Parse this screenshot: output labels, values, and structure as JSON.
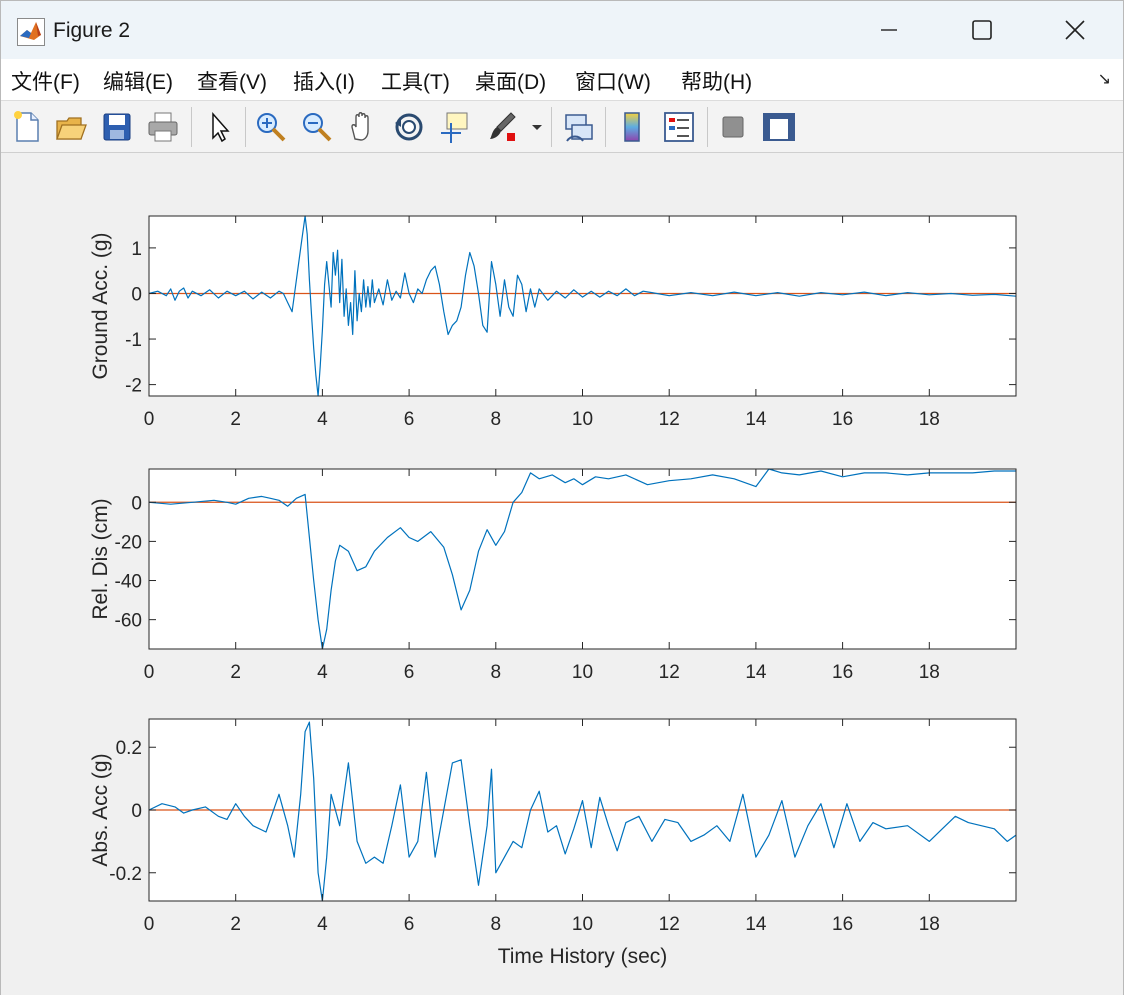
{
  "window": {
    "title": "Figure 2",
    "controls": [
      "minimize",
      "maximize",
      "close"
    ]
  },
  "menu": {
    "items": [
      "文件(F)",
      "编辑(E)",
      "查看(V)",
      "插入(I)",
      "工具(T)",
      "桌面(D)",
      "窗口(W)",
      "帮助(H)"
    ]
  },
  "toolbar": {
    "buttons": [
      "new-figure-icon",
      "open-file-icon",
      "save-icon",
      "print-icon",
      "select-arrow-icon",
      "zoom-in-icon",
      "zoom-out-icon",
      "pan-hand-icon",
      "rotate-3d-icon",
      "data-cursor-icon",
      "brush-icon",
      "brush-dropdown-icon",
      "link-plot-icon",
      "colorbar-icon",
      "legend-icon",
      "hide-plot-tools-icon",
      "show-plot-tools-icon"
    ]
  },
  "colors": {
    "series": "#0072bd",
    "reference": "#d95319",
    "axes": "#262626"
  },
  "chart_data": [
    {
      "type": "line",
      "ylabel": "Ground Acc. (g)",
      "xlabel": "",
      "xlim": [
        0,
        20
      ],
      "ylim": [
        -2.25,
        1.7
      ],
      "xticks": [
        0,
        2,
        4,
        6,
        8,
        10,
        12,
        14,
        16,
        18
      ],
      "yticks": [
        1,
        0,
        -1,
        -2
      ],
      "series": [
        {
          "x": [
            0,
            0.2,
            0.4,
            0.5,
            0.6,
            0.7,
            0.8,
            0.9,
            1.0,
            1.2,
            1.4,
            1.6,
            1.8,
            2.0,
            2.2,
            2.4,
            2.6,
            2.8,
            3.0,
            3.1,
            3.2,
            3.3,
            3.4,
            3.5,
            3.6,
            3.65,
            3.7,
            3.75,
            3.8,
            3.85,
            3.9,
            3.95,
            4.0,
            4.05,
            4.1,
            4.15,
            4.2,
            4.25,
            4.3,
            4.35,
            4.4,
            4.45,
            4.5,
            4.55,
            4.6,
            4.65,
            4.7,
            4.75,
            4.8,
            4.85,
            4.9,
            4.95,
            5.0,
            5.05,
            5.1,
            5.15,
            5.2,
            5.3,
            5.4,
            5.5,
            5.6,
            5.7,
            5.8,
            5.9,
            6.0,
            6.1,
            6.2,
            6.3,
            6.4,
            6.5,
            6.6,
            6.7,
            6.8,
            6.9,
            7.0,
            7.1,
            7.2,
            7.3,
            7.4,
            7.5,
            7.6,
            7.7,
            7.8,
            7.9,
            8.0,
            8.1,
            8.2,
            8.3,
            8.4,
            8.5,
            8.6,
            8.7,
            8.8,
            8.9,
            9.0,
            9.2,
            9.4,
            9.6,
            9.8,
            10.0,
            10.2,
            10.4,
            10.6,
            10.8,
            11.0,
            11.2,
            11.4,
            11.6,
            12.0,
            12.5,
            13.0,
            13.5,
            14.0,
            14.5,
            15.0,
            15.5,
            16.0,
            16.5,
            17.0,
            17.5,
            18.0,
            18.5,
            19.0,
            19.5,
            20.0
          ],
          "values": [
            0,
            0.05,
            -0.05,
            0.1,
            -0.15,
            0.05,
            0.12,
            -0.1,
            0.05,
            -0.05,
            0.08,
            -0.1,
            0.05,
            -0.05,
            0.05,
            -0.12,
            0.03,
            -0.1,
            0.05,
            0.0,
            -0.2,
            -0.4,
            0.3,
            1.0,
            1.7,
            1.3,
            0.3,
            -0.5,
            -1.2,
            -1.8,
            -2.25,
            -1.6,
            -0.8,
            0.2,
            0.7,
            0.2,
            -0.3,
            0.9,
            0.4,
            0.95,
            -0.2,
            0.75,
            -0.5,
            0.1,
            -0.7,
            -0.2,
            -0.9,
            0.5,
            -0.6,
            0.0,
            -0.4,
            0.3,
            -0.3,
            0.15,
            -0.3,
            0.3,
            -0.2,
            0.1,
            -0.25,
            0.3,
            -0.15,
            0.05,
            -0.1,
            0.45,
            0.0,
            -0.2,
            0.1,
            0.0,
            0.3,
            0.5,
            0.6,
            0.2,
            -0.4,
            -0.9,
            -0.7,
            -0.6,
            -0.3,
            0.4,
            0.9,
            0.6,
            0.0,
            -0.7,
            -0.85,
            0.7,
            0.2,
            -0.5,
            0.3,
            -0.3,
            -0.5,
            0.4,
            0.2,
            -0.4,
            0.1,
            -0.3,
            0.1,
            -0.15,
            0.05,
            -0.1,
            0.08,
            -0.08,
            0.05,
            -0.08,
            0.05,
            -0.05,
            0.1,
            -0.05,
            0.05,
            0.02,
            -0.05,
            0.02,
            -0.05,
            0.03,
            -0.05,
            0.02,
            -0.06,
            0.02,
            -0.03,
            0.03,
            -0.05,
            0.02,
            -0.03,
            0.0,
            -0.04,
            -0.02,
            -0.06
          ]
        }
      ]
    },
    {
      "type": "line",
      "ylabel": "Rel. Dis (cm)",
      "xlabel": "",
      "xlim": [
        0,
        20
      ],
      "ylim": [
        -75,
        17
      ],
      "xticks": [
        0,
        2,
        4,
        6,
        8,
        10,
        12,
        14,
        16,
        18
      ],
      "yticks": [
        0,
        -20,
        -40,
        -60
      ],
      "series": [
        {
          "x": [
            0,
            0.5,
            1.0,
            1.5,
            1.8,
            2.0,
            2.3,
            2.6,
            2.8,
            3.0,
            3.2,
            3.4,
            3.6,
            3.8,
            3.9,
            4.0,
            4.1,
            4.2,
            4.3,
            4.4,
            4.6,
            4.8,
            5.0,
            5.2,
            5.5,
            5.8,
            6.0,
            6.2,
            6.5,
            6.8,
            7.0,
            7.2,
            7.4,
            7.6,
            7.8,
            8.0,
            8.2,
            8.4,
            8.6,
            8.8,
            9.0,
            9.3,
            9.6,
            9.8,
            10.0,
            10.3,
            10.6,
            11.0,
            11.5,
            12.0,
            12.5,
            13.0,
            13.5,
            14.0,
            14.3,
            14.6,
            15.0,
            15.5,
            16.0,
            16.5,
            17.0,
            17.5,
            18.0,
            18.5,
            19.0,
            19.5,
            20.0
          ],
          "values": [
            0,
            -1,
            0,
            1,
            0,
            -1,
            2,
            3,
            2,
            1,
            -2,
            2,
            4,
            -40,
            -60,
            -75,
            -65,
            -45,
            -30,
            -22,
            -25,
            -35,
            -33,
            -25,
            -18,
            -13,
            -18,
            -20,
            -15,
            -23,
            -37,
            -55,
            -45,
            -25,
            -14,
            -22,
            -15,
            0,
            5,
            15,
            12,
            14,
            10,
            12,
            9,
            13,
            12,
            14,
            9,
            11,
            12,
            14,
            12,
            8,
            17,
            15,
            14,
            16,
            13,
            15,
            15,
            14,
            15,
            15,
            15,
            16,
            16
          ]
        }
      ]
    },
    {
      "type": "line",
      "ylabel": "Abs. Acc (g)",
      "xlabel": "Time History (sec)",
      "xlim": [
        0,
        20
      ],
      "ylim": [
        -0.29,
        0.29
      ],
      "xticks": [
        0,
        2,
        4,
        6,
        8,
        10,
        12,
        14,
        16,
        18
      ],
      "yticks": [
        0.2,
        0,
        -0.2
      ],
      "series": [
        {
          "x": [
            0,
            0.3,
            0.6,
            0.8,
            1.0,
            1.3,
            1.6,
            1.8,
            2.0,
            2.2,
            2.4,
            2.7,
            3.0,
            3.2,
            3.35,
            3.5,
            3.6,
            3.7,
            3.8,
            3.9,
            4.0,
            4.1,
            4.2,
            4.4,
            4.6,
            4.8,
            5.0,
            5.2,
            5.4,
            5.6,
            5.8,
            6.0,
            6.2,
            6.4,
            6.6,
            6.8,
            7.0,
            7.2,
            7.4,
            7.6,
            7.8,
            7.9,
            8.0,
            8.2,
            8.4,
            8.6,
            8.8,
            9.0,
            9.2,
            9.4,
            9.6,
            9.8,
            10.0,
            10.2,
            10.4,
            10.6,
            10.8,
            11.0,
            11.3,
            11.6,
            11.9,
            12.2,
            12.5,
            12.8,
            13.1,
            13.4,
            13.7,
            14.0,
            14.3,
            14.6,
            14.9,
            15.2,
            15.5,
            15.8,
            16.1,
            16.4,
            16.7,
            17.0,
            17.5,
            18.0,
            18.3,
            18.6,
            18.9,
            19.2,
            19.5,
            19.8,
            20.0
          ],
          "values": [
            0,
            0.02,
            0.01,
            -0.01,
            0.0,
            0.01,
            -0.02,
            -0.03,
            0.02,
            -0.02,
            -0.05,
            -0.07,
            0.05,
            -0.05,
            -0.15,
            0.05,
            0.25,
            0.28,
            0.1,
            -0.2,
            -0.29,
            -0.15,
            0.05,
            -0.05,
            0.15,
            -0.1,
            -0.17,
            -0.15,
            -0.17,
            -0.05,
            0.08,
            -0.15,
            -0.1,
            0.12,
            -0.15,
            0.0,
            0.15,
            0.16,
            -0.05,
            -0.24,
            -0.05,
            0.13,
            -0.2,
            -0.15,
            -0.1,
            -0.12,
            0.0,
            0.06,
            -0.07,
            -0.05,
            -0.14,
            -0.06,
            0.03,
            -0.12,
            0.04,
            -0.05,
            -0.13,
            -0.04,
            -0.02,
            -0.1,
            -0.03,
            -0.04,
            -0.1,
            -0.08,
            -0.05,
            -0.1,
            0.05,
            -0.15,
            -0.08,
            0.03,
            -0.15,
            -0.05,
            0.02,
            -0.12,
            0.02,
            -0.1,
            -0.04,
            -0.06,
            -0.05,
            -0.1,
            -0.06,
            -0.02,
            -0.04,
            -0.05,
            -0.06,
            -0.1,
            -0.08
          ]
        }
      ]
    }
  ]
}
